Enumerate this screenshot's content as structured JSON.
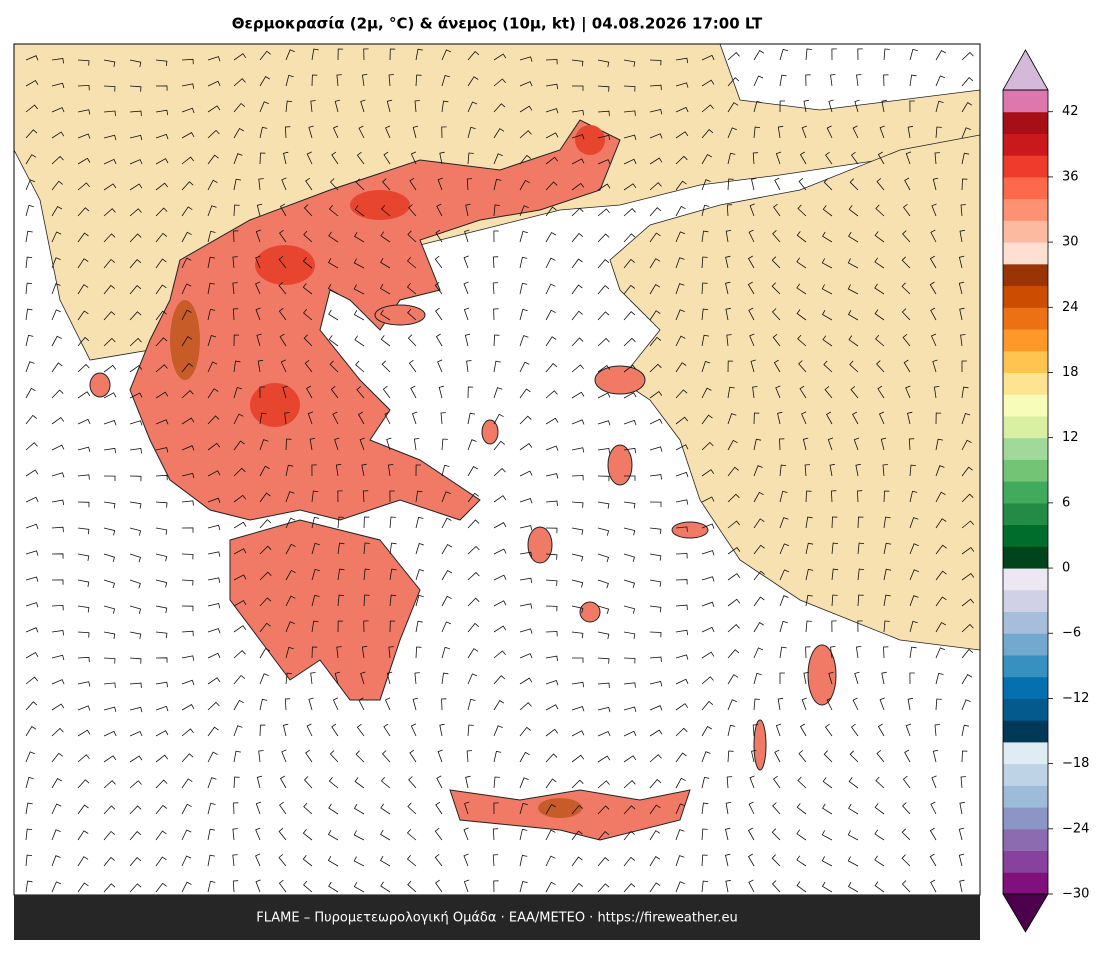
{
  "title": "Θερμοκρασία (2μ, °C) & άνεμος (10μ, kt)  |  04.08.2026 17:00 LT",
  "footer": "FLAME – Πυρομετεωρολογική Ομάδα · ΕΑΑ/METEO · https://fireweather.eu",
  "colorbar": {
    "lim": [
      -30,
      44
    ],
    "ticks": [
      {
        "value": -30,
        "label": "−30"
      },
      {
        "value": -24,
        "label": "−24"
      },
      {
        "value": -18,
        "label": "−18"
      },
      {
        "value": -12,
        "label": "−12"
      },
      {
        "value": -6,
        "label": "−6"
      },
      0,
      6,
      12,
      18,
      24,
      30,
      36,
      42
    ],
    "colors": [
      "#810f7c",
      "#88419d",
      "#8c6bb1",
      "#8c96c6",
      "#9ebcda",
      "#bfd3e6",
      "#e0ecf4",
      "#023858",
      "#045a8d",
      "#0570b0",
      "#3690c0",
      "#74a9cf",
      "#a6bddb",
      "#d0d1e6",
      "#ece7f2",
      "#00441b",
      "#006d2c",
      "#238b45",
      "#41ab5d",
      "#74c476",
      "#a1d99b",
      "#d9f0a3",
      "#f7fcb9",
      "#fee391",
      "#fec44f",
      "#fe9929",
      "#ec7014",
      "#cc4c02",
      "#993404",
      "#fee0d2",
      "#fcbba1",
      "#fc9272",
      "#fb6a4a",
      "#ef3b2c",
      "#cb181d",
      "#a50f15",
      "#de77ae"
    ],
    "under_color": "#4d004b",
    "over_color": "#d4b9da"
  }
}
